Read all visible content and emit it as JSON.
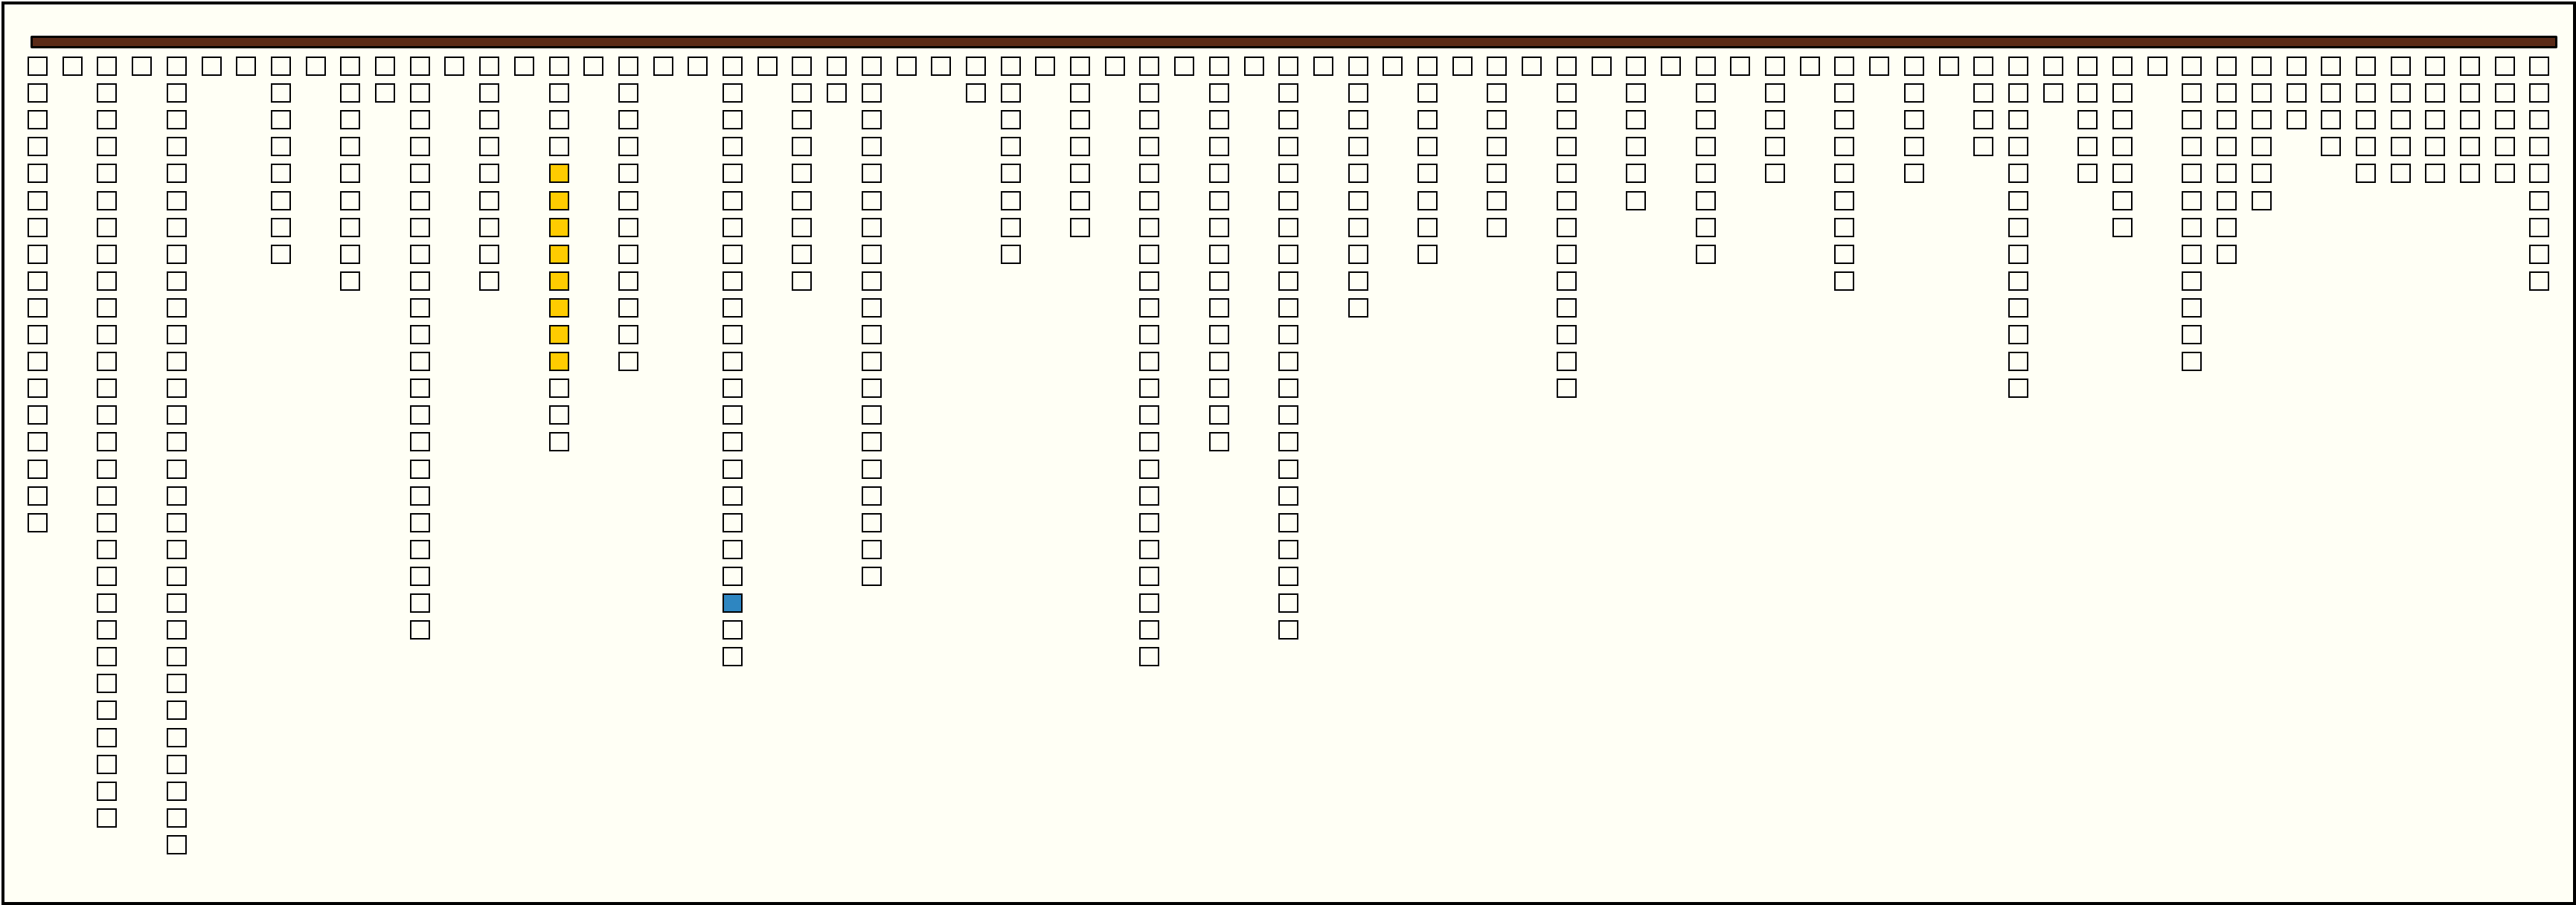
{
  "colors": {
    "background": "#fffff5",
    "bar": "#5a2a18",
    "cell_default": "#fffff5",
    "highlight_yellow": "#ffcc00",
    "highlight_blue": "#2e86c1"
  },
  "columns": [
    18,
    1,
    29,
    1,
    30,
    1,
    1,
    8,
    1,
    9,
    2,
    22,
    1,
    9,
    1,
    15,
    1,
    12,
    1,
    1,
    23,
    1,
    9,
    2,
    20,
    1,
    1,
    2,
    8,
    1,
    7,
    1,
    23,
    1,
    15,
    1,
    22,
    1,
    10,
    1,
    8,
    1,
    7,
    1,
    13,
    1,
    6,
    1,
    8,
    1,
    5,
    1,
    9,
    1,
    5,
    1,
    4,
    13,
    2,
    5,
    7,
    1,
    12,
    8,
    6,
    3,
    4,
    5,
    5,
    5,
    5,
    5,
    9
  ],
  "highlights": [
    {
      "column": 16,
      "rows": [
        5,
        6,
        7,
        8,
        9,
        10,
        11,
        12
      ],
      "color": "highlight_yellow"
    },
    {
      "column": 21,
      "rows": [
        21
      ],
      "color": "highlight_blue"
    }
  ]
}
